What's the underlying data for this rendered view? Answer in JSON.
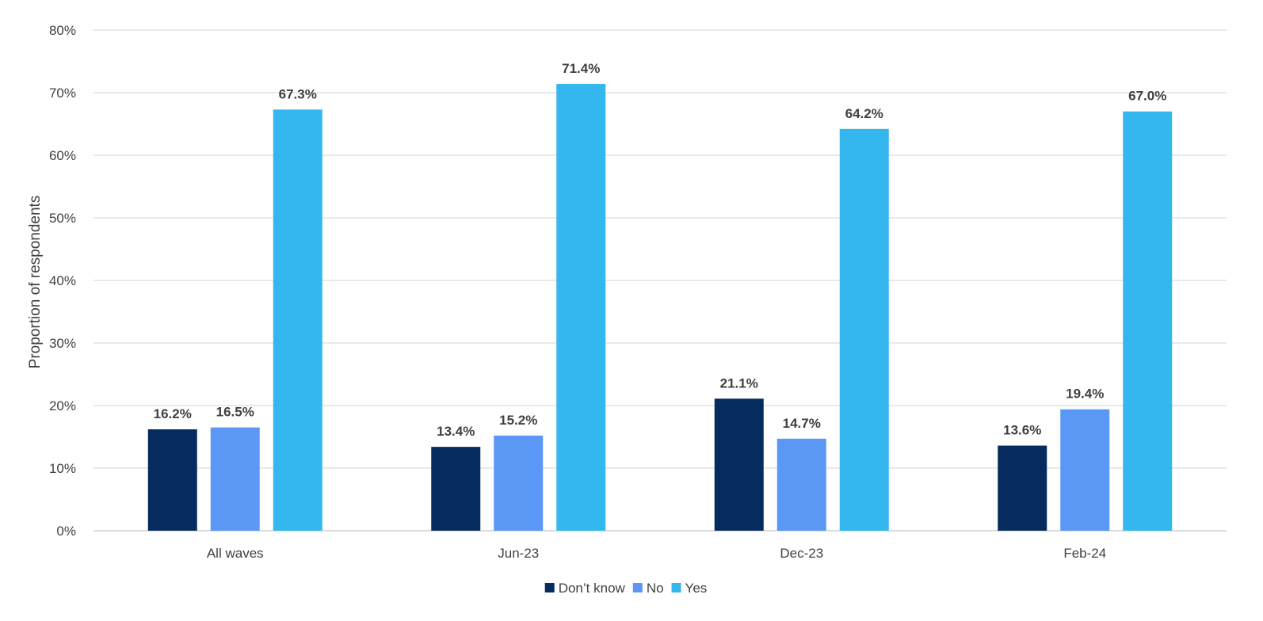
{
  "chart_data": {
    "type": "bar",
    "title": "",
    "xlabel": "",
    "ylabel": "Proportion of respondents",
    "ylim": [
      0,
      80
    ],
    "yticks": [
      "0%",
      "10%",
      "20%",
      "30%",
      "40%",
      "50%",
      "60%",
      "70%",
      "80%"
    ],
    "grid": true,
    "legend_position": "bottom",
    "categories": [
      "All waves",
      "Jun-23",
      "Dec-23",
      "Feb-24"
    ],
    "series": [
      {
        "name": "Don’t know",
        "color": "#062b5f",
        "values": [
          16.2,
          13.4,
          21.1,
          13.6
        ],
        "labels": [
          "16.2%",
          "13.4%",
          "21.1%",
          "13.6%"
        ]
      },
      {
        "name": "No",
        "color": "#5b98f5",
        "values": [
          16.5,
          15.2,
          14.7,
          19.4
        ],
        "labels": [
          "16.5%",
          "15.2%",
          "14.7%",
          "19.4%"
        ]
      },
      {
        "name": "Yes",
        "color": "#33b7ee",
        "values": [
          67.3,
          71.4,
          64.2,
          67.0
        ],
        "labels": [
          "67.3%",
          "71.4%",
          "64.2%",
          "67.0%"
        ]
      }
    ]
  }
}
